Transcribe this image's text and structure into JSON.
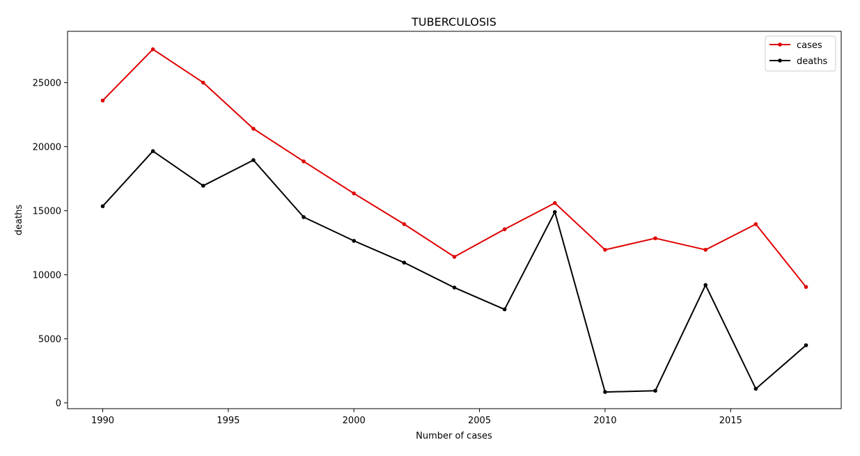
{
  "chart_data": {
    "type": "line",
    "title": "TUBERCULOSIS",
    "xlabel": "Number of cases",
    "ylabel": "deaths",
    "x": [
      1990,
      1992,
      1994,
      1996,
      1998,
      2000,
      2002,
      2004,
      2006,
      2008,
      2010,
      2012,
      2014,
      2016,
      2018
    ],
    "xlim": [
      1988.6,
      2019.4
    ],
    "ylim": [
      -450,
      29000
    ],
    "xticks": [
      1990,
      1995,
      2000,
      2005,
      2010,
      2015
    ],
    "yticks": [
      0,
      5000,
      10000,
      15000,
      20000,
      25000
    ],
    "grid": false,
    "legend_position": "top-right",
    "series": [
      {
        "name": "cases",
        "color": "#e00000",
        "values": [
          23600,
          27600,
          25000,
          21400,
          18850,
          16350,
          13950,
          11400,
          13550,
          15600,
          11950,
          12850,
          11950,
          13950,
          9050
        ]
      },
      {
        "name": "deaths",
        "color": "#000000",
        "values": [
          15350,
          19650,
          16950,
          18950,
          14500,
          12650,
          10950,
          9000,
          7300,
          14900,
          850,
          950,
          9200,
          1100,
          4500
        ]
      }
    ]
  }
}
